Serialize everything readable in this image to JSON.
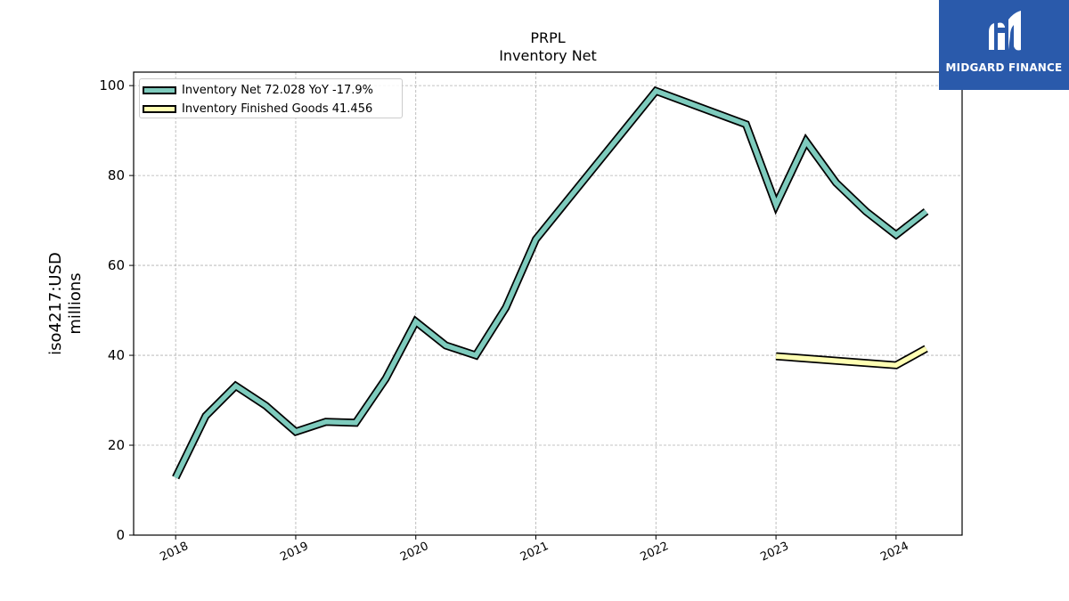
{
  "chart_data": {
    "type": "line",
    "title": "PRPL",
    "subtitle": "Inventory Net",
    "ylabel_lines": [
      "iso4217:USD",
      "millions"
    ],
    "ylim": [
      0,
      103
    ],
    "yticks": [
      0,
      20,
      40,
      60,
      80,
      100
    ],
    "xlim": [
      2017.65,
      2024.55
    ],
    "xticks": [
      "2018",
      "2019",
      "2020",
      "2021",
      "2022",
      "2023",
      "2024"
    ],
    "grid": true,
    "legend_position": "top-left",
    "series": [
      {
        "name": "Inventory Net",
        "legend_label": "Inventory Net  72.028 YoY -17.9%",
        "color": "#7ecbbd",
        "x": [
          2018.0,
          2018.25,
          2018.5,
          2018.75,
          2019.0,
          2019.25,
          2019.5,
          2019.75,
          2020.0,
          2020.25,
          2020.5,
          2020.75,
          2021.0,
          2022.0,
          2022.75,
          2023.0,
          2023.25,
          2023.5,
          2023.75,
          2024.0,
          2024.25
        ],
        "values": [
          12.8,
          26.5,
          33.2,
          28.8,
          23.0,
          25.2,
          25.0,
          34.8,
          47.5,
          42.2,
          40.0,
          50.6,
          65.8,
          98.8,
          91.4,
          73.5,
          87.6,
          78.4,
          72.0,
          66.8,
          72.0
        ]
      },
      {
        "name": "Inventory Finished Goods",
        "legend_label": "Inventory Finished Goods  41.456",
        "color": "#ffffb3",
        "x": [
          2023.0,
          2024.0,
          2024.25
        ],
        "values": [
          39.8,
          37.8,
          41.5
        ]
      }
    ]
  },
  "logo": {
    "text": "MIDGARD FINANCE",
    "color": "#2a5aab"
  }
}
